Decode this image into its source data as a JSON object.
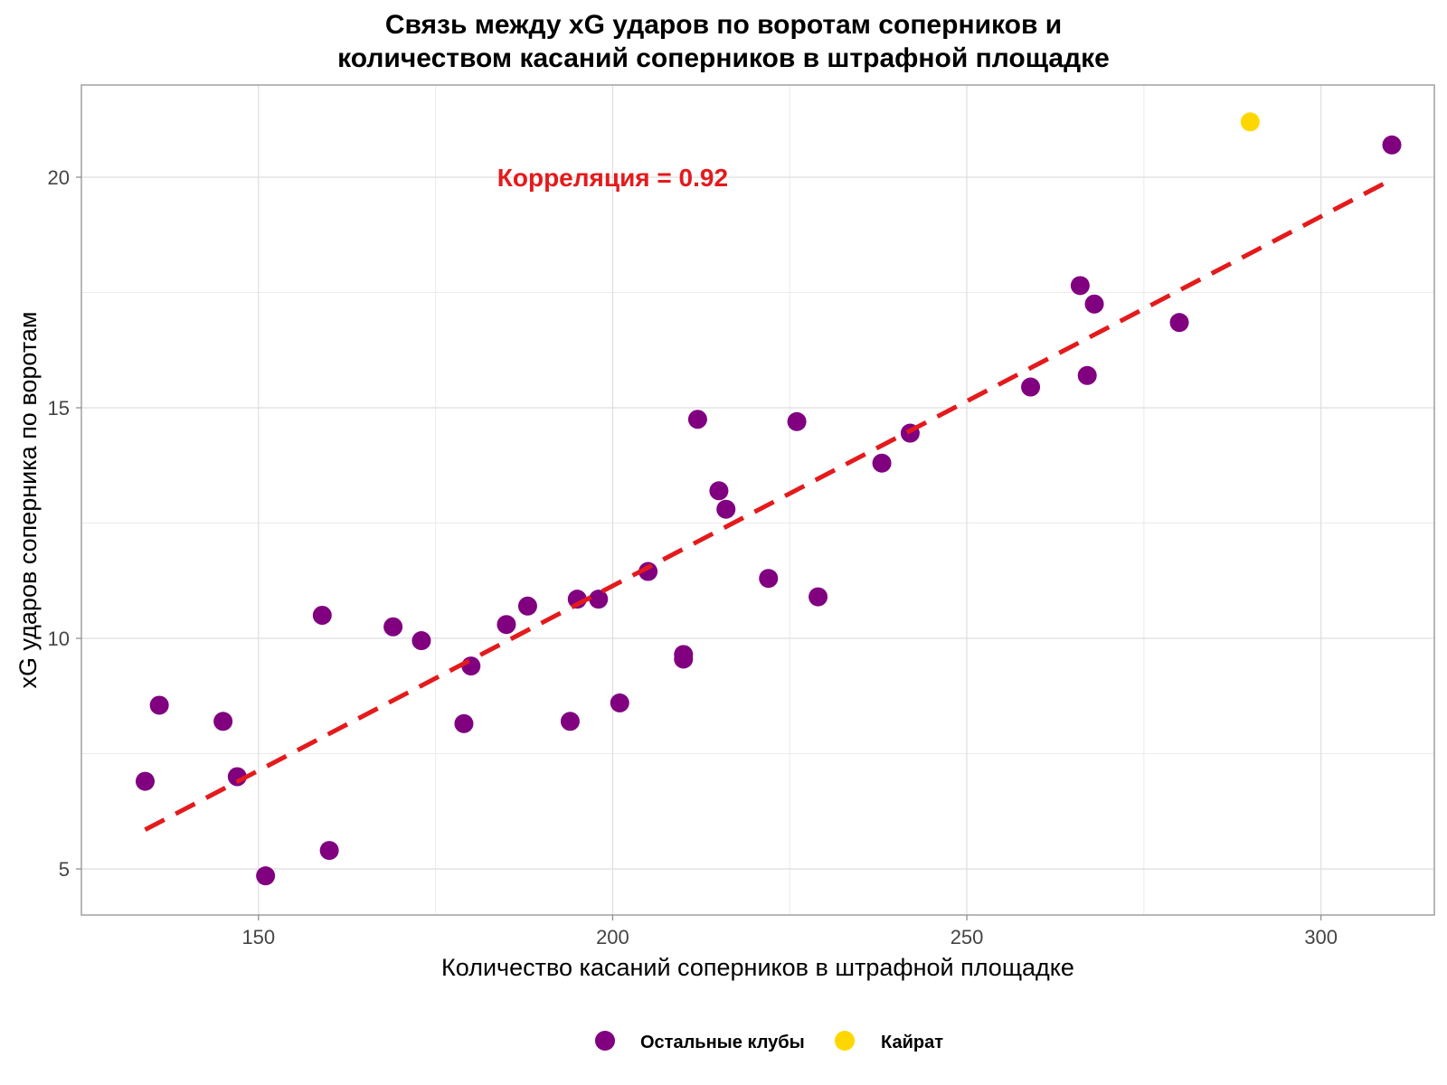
{
  "chart_data": {
    "type": "scatter",
    "title_lines": [
      "Связь между xG ударов по воротам соперников и",
      "количеством касаний соперников в штрафной площадке"
    ],
    "xlabel": "Количество касаний соперников в штрафной площадке",
    "ylabel": "xG ударов соперника по воротам",
    "xlim": [
      125,
      316
    ],
    "ylim": [
      4,
      22
    ],
    "x_ticks": [
      150,
      200,
      250,
      300
    ],
    "y_ticks": [
      5,
      10,
      15,
      20
    ],
    "grid": true,
    "annotation": {
      "text": "Корреляция = 0.92",
      "x": 200,
      "y": 20,
      "color": "#e41a1c"
    },
    "trendline": {
      "type": "linear",
      "color": "#e41a1c",
      "style": "dashed",
      "x_start": 134,
      "y_start": 5.85,
      "x_end": 310,
      "y_end": 19.95
    },
    "legend_position": "bottom",
    "series": [
      {
        "name": "Остальные клубы",
        "color": "#800080",
        "points": [
          [
            134,
            6.9
          ],
          [
            136,
            8.55
          ],
          [
            145,
            8.2
          ],
          [
            147,
            7.0
          ],
          [
            151,
            4.85
          ],
          [
            159,
            10.5
          ],
          [
            160,
            5.4
          ],
          [
            169,
            10.25
          ],
          [
            173,
            9.95
          ],
          [
            179,
            8.15
          ],
          [
            180,
            9.4
          ],
          [
            185,
            10.3
          ],
          [
            188,
            10.7
          ],
          [
            194,
            8.2
          ],
          [
            195,
            10.85
          ],
          [
            198,
            10.85
          ],
          [
            201,
            8.6
          ],
          [
            205,
            11.45
          ],
          [
            210,
            9.65
          ],
          [
            210,
            9.55
          ],
          [
            212,
            14.75
          ],
          [
            215,
            13.2
          ],
          [
            216,
            12.8
          ],
          [
            222,
            11.3
          ],
          [
            226,
            14.7
          ],
          [
            229,
            10.9
          ],
          [
            238,
            13.8
          ],
          [
            242,
            14.45
          ],
          [
            259,
            15.45
          ],
          [
            266,
            17.65
          ],
          [
            267,
            15.7
          ],
          [
            268,
            17.25
          ],
          [
            280,
            16.85
          ],
          [
            310,
            20.7
          ]
        ]
      },
      {
        "name": "Кайрат",
        "color": "#ffd700",
        "points": [
          [
            290,
            21.2
          ]
        ]
      }
    ]
  }
}
